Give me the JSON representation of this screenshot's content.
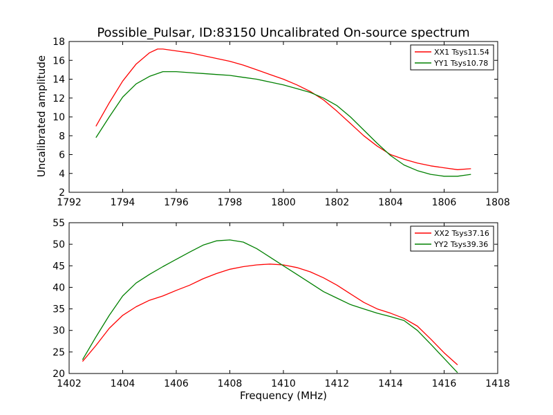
{
  "chart_data": [
    {
      "type": "line",
      "title": "Possible_Pulsar, ID:83150 Uncalibrated On-source spectrum",
      "xlabel": "",
      "ylabel": "Uncalibrated amplitude",
      "xlim": [
        1792,
        1808
      ],
      "ylim": [
        2,
        18
      ],
      "xticks": [
        "1792",
        "1794",
        "1796",
        "1798",
        "1800",
        "1802",
        "1804",
        "1806",
        "1808"
      ],
      "yticks": [
        "2",
        "4",
        "6",
        "8",
        "10",
        "12",
        "14",
        "16",
        "18"
      ],
      "grid": false,
      "legend_position": "top-right",
      "series": [
        {
          "name": "XX1 Tsys11.54",
          "color": "#ff0000",
          "x": [
            1793.0,
            1793.5,
            1794.0,
            1794.5,
            1795.0,
            1795.3,
            1795.5,
            1796.0,
            1796.5,
            1797.0,
            1797.5,
            1798.0,
            1798.5,
            1799.0,
            1799.5,
            1800.0,
            1800.5,
            1801.0,
            1801.5,
            1802.0,
            1802.5,
            1803.0,
            1803.5,
            1804.0,
            1804.5,
            1805.0,
            1805.5,
            1806.0,
            1806.5,
            1807.0
          ],
          "y": [
            9.0,
            11.5,
            13.8,
            15.6,
            16.8,
            17.2,
            17.2,
            17.0,
            16.8,
            16.5,
            16.2,
            15.9,
            15.5,
            15.0,
            14.5,
            14.0,
            13.4,
            12.7,
            11.8,
            10.6,
            9.3,
            8.0,
            6.9,
            6.0,
            5.5,
            5.1,
            4.8,
            4.6,
            4.4,
            4.5
          ]
        },
        {
          "name": "YY1 Tsys10.78",
          "color": "#008000",
          "x": [
            1793.0,
            1793.5,
            1794.0,
            1794.5,
            1795.0,
            1795.5,
            1796.0,
            1796.5,
            1797.0,
            1797.5,
            1798.0,
            1798.5,
            1799.0,
            1799.5,
            1800.0,
            1800.5,
            1801.0,
            1801.5,
            1802.0,
            1802.5,
            1803.0,
            1803.5,
            1804.0,
            1804.5,
            1805.0,
            1805.5,
            1806.0,
            1806.5,
            1807.0
          ],
          "y": [
            7.8,
            10.0,
            12.1,
            13.5,
            14.3,
            14.8,
            14.8,
            14.7,
            14.6,
            14.5,
            14.4,
            14.2,
            14.0,
            13.7,
            13.4,
            13.0,
            12.6,
            12.0,
            11.2,
            10.0,
            8.6,
            7.2,
            5.9,
            4.9,
            4.3,
            3.9,
            3.7,
            3.7,
            3.9
          ]
        }
      ]
    },
    {
      "type": "line",
      "title": "",
      "xlabel": "Frequency (MHz)",
      "ylabel": "",
      "xlim": [
        1402,
        1418
      ],
      "ylim": [
        20,
        55
      ],
      "xticks": [
        "1402",
        "1404",
        "1406",
        "1408",
        "1410",
        "1412",
        "1414",
        "1416",
        "1418"
      ],
      "yticks": [
        "20",
        "25",
        "30",
        "35",
        "40",
        "45",
        "50",
        "55"
      ],
      "grid": false,
      "legend_position": "top-right",
      "series": [
        {
          "name": "XX2 Tsys37.16",
          "color": "#ff0000",
          "x": [
            1402.5,
            1403.0,
            1403.5,
            1404.0,
            1404.5,
            1405.0,
            1405.5,
            1406.0,
            1406.5,
            1407.0,
            1407.5,
            1408.0,
            1408.5,
            1409.0,
            1409.5,
            1410.0,
            1410.5,
            1411.0,
            1411.5,
            1412.0,
            1412.5,
            1413.0,
            1413.5,
            1414.0,
            1414.5,
            1415.0,
            1415.5,
            1416.0,
            1416.5
          ],
          "y": [
            22.8,
            26.5,
            30.5,
            33.5,
            35.5,
            37.0,
            38.0,
            39.3,
            40.5,
            42.0,
            43.2,
            44.2,
            44.8,
            45.2,
            45.4,
            45.2,
            44.6,
            43.6,
            42.2,
            40.5,
            38.5,
            36.5,
            35.0,
            34.0,
            32.8,
            31.0,
            28.0,
            24.8,
            22.0
          ]
        },
        {
          "name": "YY2 Tsys39.36",
          "color": "#008000",
          "x": [
            1402.5,
            1403.0,
            1403.5,
            1404.0,
            1404.5,
            1405.0,
            1405.5,
            1406.0,
            1406.5,
            1407.0,
            1407.5,
            1408.0,
            1408.5,
            1409.0,
            1409.5,
            1410.0,
            1410.5,
            1411.0,
            1411.5,
            1412.0,
            1412.5,
            1413.0,
            1413.5,
            1414.0,
            1414.5,
            1415.0,
            1415.5,
            1416.0,
            1416.5
          ],
          "y": [
            23.2,
            28.5,
            33.5,
            38.0,
            41.0,
            43.0,
            44.8,
            46.5,
            48.2,
            49.8,
            50.8,
            51.0,
            50.5,
            49.0,
            47.0,
            45.0,
            43.0,
            41.0,
            39.0,
            37.5,
            36.0,
            35.0,
            34.0,
            33.2,
            32.3,
            30.0,
            26.8,
            23.5,
            20.2
          ]
        }
      ]
    }
  ]
}
